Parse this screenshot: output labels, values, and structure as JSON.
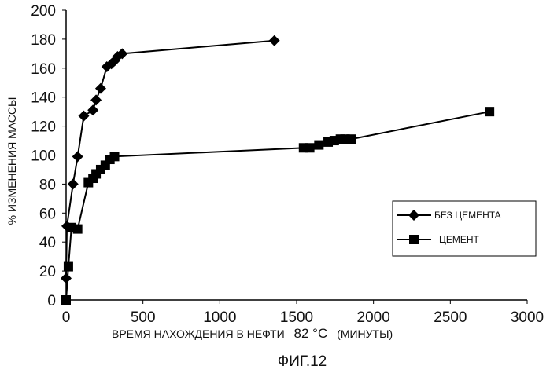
{
  "chart_data": {
    "type": "line",
    "title": "",
    "xlabel": "ВРЕМЯ НАХОЖДЕНИЯ В НЕФТИ",
    "xlabel_temp": "82 °C",
    "xlabel_units": "(МИНУТЫ)",
    "ylabel": "% ИЗМЕНЕНИЯ МАССЫ",
    "figure_label": "ФИГ.12",
    "xlim": [
      0,
      3000
    ],
    "ylim": [
      0,
      200
    ],
    "x_ticks": [
      0,
      500,
      1000,
      1500,
      2000,
      2500,
      3000
    ],
    "y_ticks": [
      0,
      20,
      40,
      60,
      80,
      100,
      120,
      140,
      160,
      180,
      200
    ],
    "grid": false,
    "legend_position": "right",
    "series": [
      {
        "name": "БЕЗ ЦЕМЕНТА",
        "marker": "diamond",
        "color": "#000000",
        "points": [
          [
            0,
            15
          ],
          [
            5,
            51
          ],
          [
            45,
            80
          ],
          [
            75,
            99
          ],
          [
            115,
            127
          ],
          [
            175,
            131
          ],
          [
            195,
            138
          ],
          [
            225,
            146
          ],
          [
            265,
            161
          ],
          [
            295,
            163
          ],
          [
            315,
            165
          ],
          [
            335,
            168
          ],
          [
            365,
            170
          ],
          [
            1355,
            179
          ]
        ]
      },
      {
        "name": "ЦЕМЕНТ",
        "marker": "square",
        "color": "#000000",
        "points": [
          [
            0,
            0
          ],
          [
            15,
            23
          ],
          [
            35,
            50
          ],
          [
            75,
            49
          ],
          [
            145,
            81
          ],
          [
            175,
            84
          ],
          [
            195,
            87
          ],
          [
            225,
            90
          ],
          [
            255,
            93
          ],
          [
            285,
            97
          ],
          [
            315,
            99
          ],
          [
            1545,
            105
          ],
          [
            1585,
            105
          ],
          [
            1645,
            107
          ],
          [
            1705,
            109
          ],
          [
            1745,
            110
          ],
          [
            1785,
            111
          ],
          [
            1815,
            111
          ],
          [
            1855,
            111
          ],
          [
            2755,
            130
          ]
        ]
      }
    ]
  }
}
